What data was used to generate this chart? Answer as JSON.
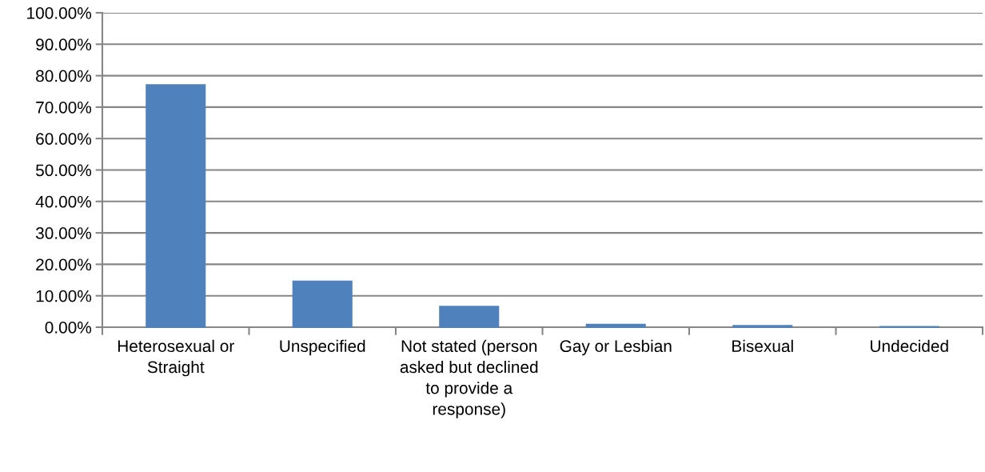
{
  "chart_data": {
    "type": "bar",
    "categories": [
      "Heterosexual or Straight",
      "Unspecified",
      "Not stated (person asked but declined to provide a response)",
      "Gay or Lesbian",
      "Bisexual",
      "Undecided"
    ],
    "values": [
      77.1,
      14.6,
      6.6,
      0.9,
      0.5,
      0.2
    ],
    "color": "#4f81bd",
    "ylim": [
      0,
      100
    ],
    "yticks": [
      {
        "value": 0,
        "label": "0.00%"
      },
      {
        "value": 10,
        "label": "10.00%"
      },
      {
        "value": 20,
        "label": "20.00%"
      },
      {
        "value": 30,
        "label": "30.00%"
      },
      {
        "value": 40,
        "label": "40.00%"
      },
      {
        "value": 50,
        "label": "50.00%"
      },
      {
        "value": 60,
        "label": "60.00%"
      },
      {
        "value": 70,
        "label": "70.00%"
      },
      {
        "value": 80,
        "label": "80.00%"
      },
      {
        "value": 90,
        "label": "90.00%"
      },
      {
        "value": 100,
        "label": "100.00%"
      }
    ],
    "grid": "y"
  }
}
